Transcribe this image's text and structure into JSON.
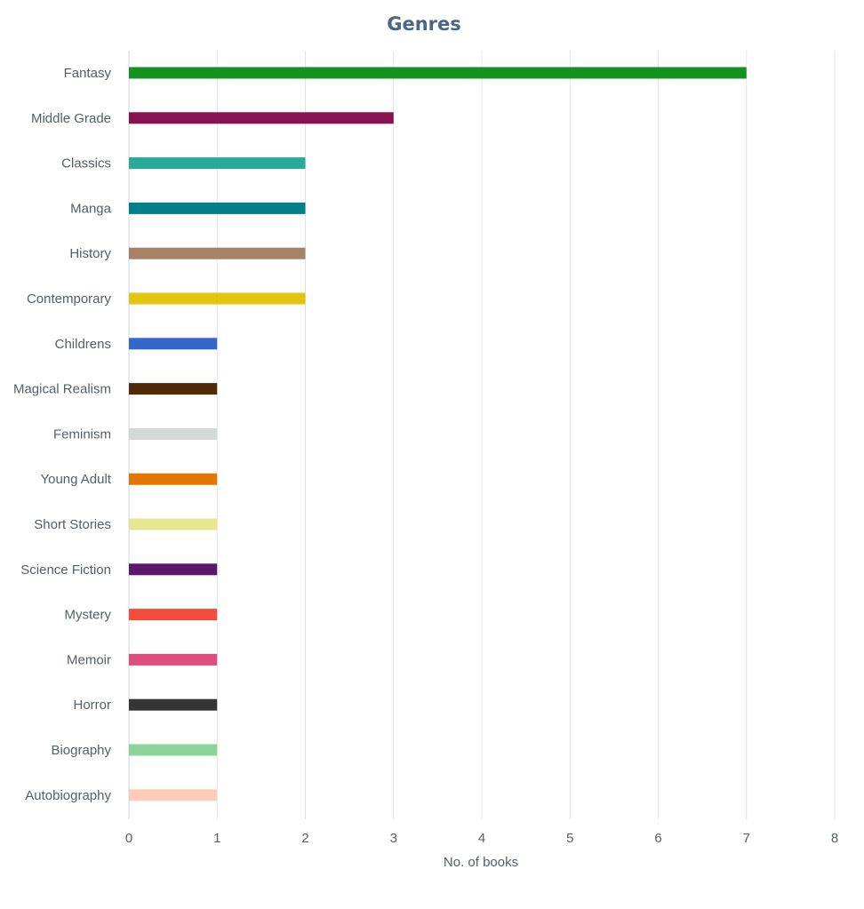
{
  "chart_data": {
    "type": "bar",
    "orientation": "horizontal",
    "title": "Genres",
    "xlabel": "No. of books",
    "ylabel": "",
    "xlim": [
      0,
      8
    ],
    "xticks": [
      "0",
      "1",
      "2",
      "3",
      "4",
      "5",
      "6",
      "7",
      "8"
    ],
    "grid": true,
    "legend": "none",
    "categories": [
      "Fantasy",
      "Middle Grade",
      "Classics",
      "Manga",
      "History",
      "Contemporary",
      "Childrens",
      "Magical Realism",
      "Feminism",
      "Young Adult",
      "Short Stories",
      "Science Fiction",
      "Mystery",
      "Memoir",
      "Horror",
      "Biography",
      "Autobiography"
    ],
    "values": [
      7,
      3,
      2,
      2,
      2,
      2,
      1,
      1,
      1,
      1,
      1,
      1,
      1,
      1,
      1,
      1,
      1
    ],
    "colors": [
      "#14921f",
      "#861250",
      "#26aa9a",
      "#008089",
      "#a88266",
      "#e4c40c",
      "#3168c9",
      "#512a07",
      "#d2d9d6",
      "#e37600",
      "#e6e78f",
      "#5b176c",
      "#f44b3a",
      "#e14d7f",
      "#353535",
      "#8bd59b",
      "#fdcbb7"
    ]
  }
}
